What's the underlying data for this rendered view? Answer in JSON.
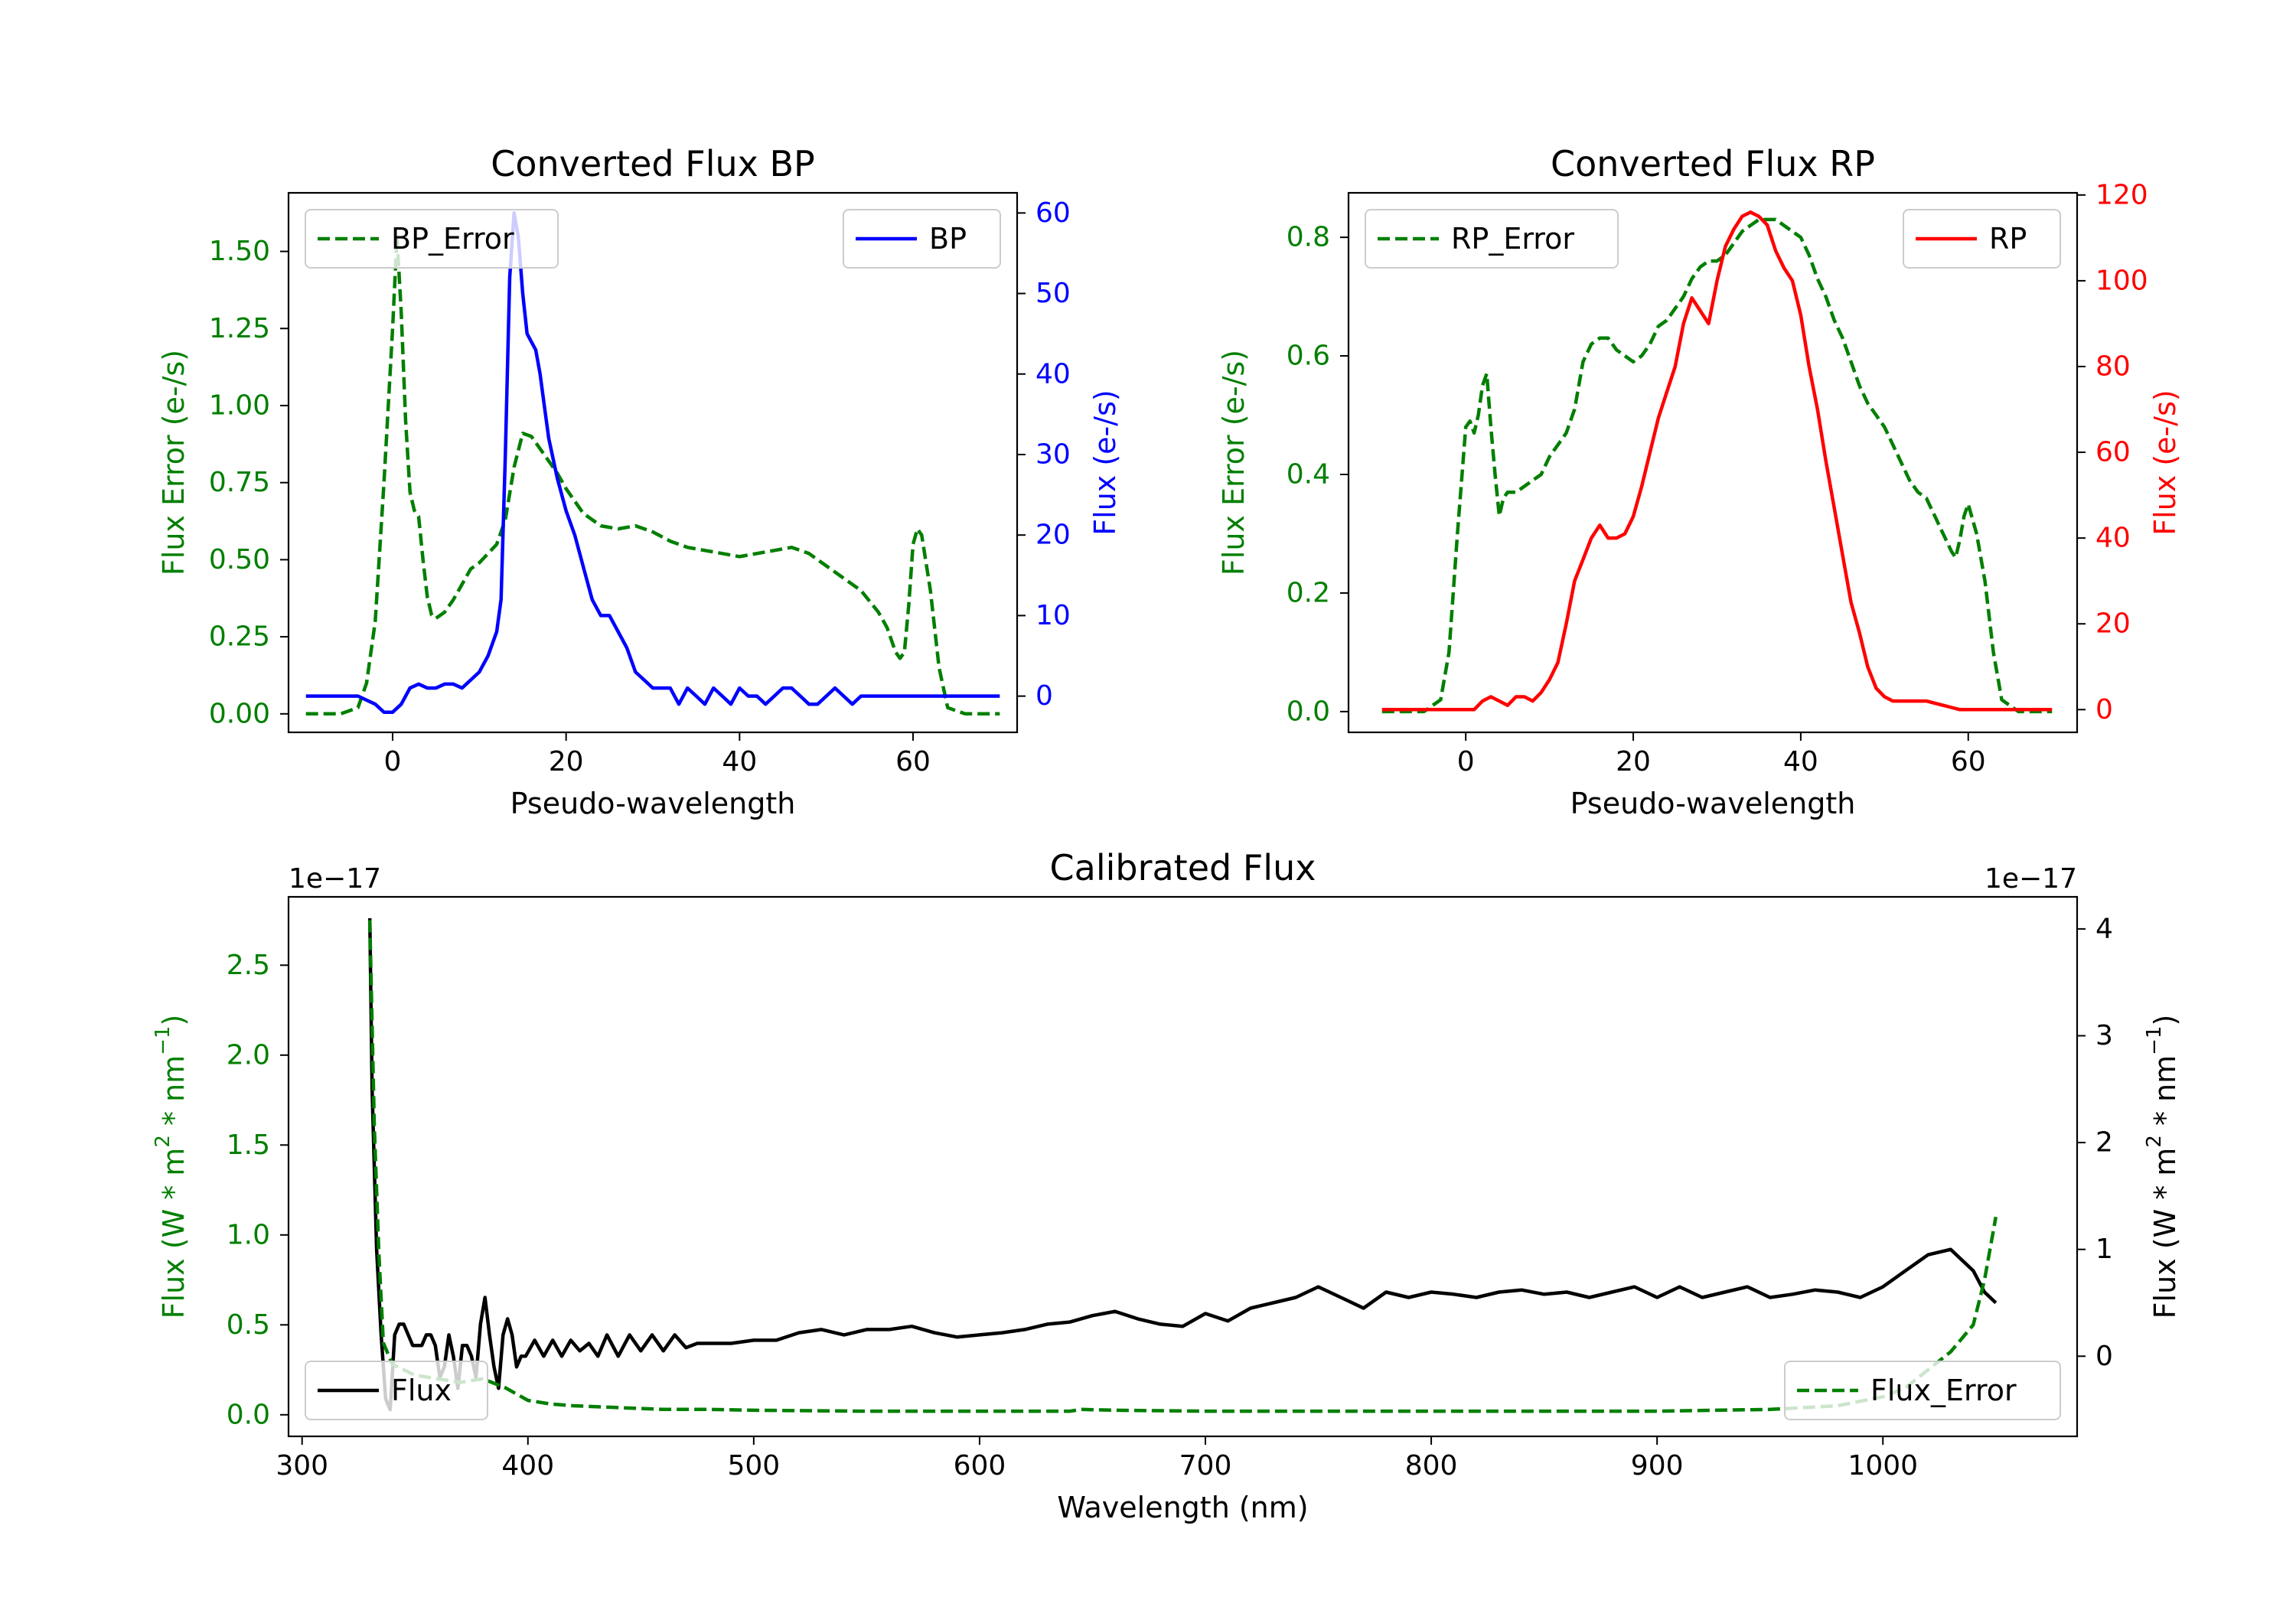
{
  "colors": {
    "bp_error": "#007f00",
    "bp": "#0000ff",
    "rp_error": "#007f00",
    "rp": "#ff0000",
    "cal_flux": "#000000",
    "cal_error": "#007f00"
  },
  "chart_data": [
    {
      "id": "bp",
      "type": "line",
      "title": "Converted Flux BP",
      "xlabel": "Pseudo-wavelength",
      "ylabel_left": "Flux Error (e-/s)",
      "ylabel_right": "Flux (e-/s)",
      "xlim": [
        -12,
        72
      ],
      "ylim_left": [
        -0.06,
        1.69
      ],
      "ylim_right": [
        -4.5,
        62.5
      ],
      "xticks": [
        "0",
        "20",
        "40",
        "60"
      ],
      "yticks_left": [
        "0.00",
        "0.25",
        "0.50",
        "0.75",
        "1.00",
        "1.25",
        "1.50"
      ],
      "yticks_right": [
        "0",
        "10",
        "20",
        "30",
        "40",
        "50",
        "60"
      ],
      "legend": {
        "error_label": "BP_Error",
        "flux_label": "BP"
      },
      "series": [
        {
          "name": "BP_Error",
          "axis": "left",
          "style": "dashed",
          "x": [
            -10,
            -6,
            -4,
            -3,
            -2,
            -1,
            0,
            0.5,
            1,
            1.5,
            2,
            2.5,
            3,
            3.5,
            4,
            4.5,
            5,
            6,
            7,
            8,
            9,
            10,
            11,
            12,
            13,
            14,
            15,
            16,
            17,
            18,
            19,
            20,
            21,
            22,
            24,
            26,
            28,
            30,
            32,
            34,
            36,
            38,
            40,
            42,
            44,
            46,
            48,
            50,
            52,
            54,
            56,
            57,
            58,
            58.5,
            59,
            59.5,
            60,
            60.5,
            61,
            62,
            63,
            64,
            66,
            70
          ],
          "values": [
            0,
            0,
            0.02,
            0.1,
            0.3,
            0.75,
            1.25,
            1.55,
            1.3,
            0.95,
            0.72,
            0.66,
            0.64,
            0.5,
            0.38,
            0.32,
            0.31,
            0.33,
            0.37,
            0.42,
            0.47,
            0.49,
            0.52,
            0.55,
            0.63,
            0.8,
            0.91,
            0.9,
            0.86,
            0.82,
            0.78,
            0.73,
            0.69,
            0.65,
            0.61,
            0.6,
            0.61,
            0.59,
            0.56,
            0.54,
            0.53,
            0.52,
            0.51,
            0.52,
            0.53,
            0.54,
            0.52,
            0.48,
            0.44,
            0.4,
            0.33,
            0.28,
            0.2,
            0.18,
            0.2,
            0.35,
            0.55,
            0.6,
            0.58,
            0.4,
            0.15,
            0.02,
            0,
            0
          ]
        },
        {
          "name": "BP",
          "axis": "right",
          "style": "solid",
          "x": [
            -10,
            -6,
            -4,
            -2,
            -1,
            0,
            1,
            2,
            3,
            4,
            5,
            6,
            7,
            8,
            9,
            10,
            11,
            12,
            12.5,
            13,
            13.5,
            14,
            14.5,
            15,
            15.5,
            16,
            16.5,
            17,
            17.5,
            18,
            19,
            20,
            21,
            22,
            23,
            24,
            25,
            26,
            27,
            28,
            29,
            30,
            31,
            32,
            33,
            34,
            35,
            36,
            37,
            38,
            39,
            40,
            41,
            42,
            43,
            44,
            45,
            46,
            47,
            48,
            49,
            50,
            51,
            52,
            53,
            54,
            55,
            56,
            57,
            58,
            60,
            62,
            64,
            66,
            70
          ],
          "values": [
            0,
            0,
            0,
            -1,
            -2,
            -2,
            -1,
            1,
            1.5,
            1,
            1,
            1.5,
            1.5,
            1,
            2,
            3,
            5,
            8,
            12,
            30,
            52,
            60,
            57,
            50,
            45,
            44,
            43,
            40,
            36,
            32,
            27,
            23,
            20,
            16,
            12,
            10,
            10,
            8,
            6,
            3,
            2,
            1,
            1,
            1,
            -1,
            1,
            0,
            -1,
            1,
            0,
            -1,
            1,
            0,
            0,
            -1,
            0,
            1,
            1,
            0,
            -1,
            -1,
            0,
            1,
            0,
            -1,
            0,
            0,
            0,
            0,
            0,
            0,
            0,
            0,
            0,
            0
          ]
        }
      ]
    },
    {
      "id": "rp",
      "type": "line",
      "title": "Converted Flux RP",
      "xlabel": "Pseudo-wavelength",
      "ylabel_left": "Flux Error (e-/s)",
      "ylabel_right": "Flux (e-/s)",
      "xlim": [
        -14,
        73
      ],
      "ylim_left": [
        -0.035,
        0.875
      ],
      "ylim_right": [
        -5.3,
        120.5
      ],
      "xticks": [
        "0",
        "20",
        "40",
        "60"
      ],
      "yticks_left": [
        "0.0",
        "0.2",
        "0.4",
        "0.6",
        "0.8"
      ],
      "yticks_right": [
        "0",
        "20",
        "40",
        "60",
        "80",
        "100",
        "120"
      ],
      "legend": {
        "error_label": "RP_Error",
        "flux_label": "RP"
      },
      "series": [
        {
          "name": "RP_Error",
          "axis": "left",
          "style": "dashed",
          "x": [
            -10,
            -5,
            -3,
            -2,
            -1,
            0,
            0.5,
            1,
            1.5,
            2,
            2.5,
            3,
            3.5,
            4,
            4.5,
            5,
            6,
            7,
            8,
            9,
            10,
            11,
            12,
            13,
            14,
            15,
            16,
            17,
            18,
            19,
            20,
            21,
            22,
            23,
            24,
            25,
            26,
            27,
            28,
            29,
            30,
            31,
            32,
            33,
            34,
            35,
            36,
            37,
            38,
            39,
            40,
            41,
            42,
            43,
            44,
            45,
            46,
            47,
            48,
            49,
            50,
            51,
            52,
            53,
            54,
            55,
            56,
            57,
            58,
            58.5,
            59,
            59.5,
            60,
            61,
            62,
            63,
            64,
            66,
            70
          ],
          "values": [
            0,
            0,
            0.02,
            0.1,
            0.3,
            0.48,
            0.49,
            0.47,
            0.5,
            0.55,
            0.57,
            0.48,
            0.4,
            0.33,
            0.36,
            0.37,
            0.37,
            0.38,
            0.39,
            0.4,
            0.43,
            0.45,
            0.47,
            0.51,
            0.59,
            0.62,
            0.63,
            0.63,
            0.61,
            0.6,
            0.59,
            0.6,
            0.62,
            0.65,
            0.66,
            0.68,
            0.7,
            0.73,
            0.75,
            0.76,
            0.76,
            0.77,
            0.79,
            0.81,
            0.82,
            0.83,
            0.83,
            0.83,
            0.82,
            0.81,
            0.8,
            0.77,
            0.73,
            0.7,
            0.66,
            0.63,
            0.59,
            0.55,
            0.52,
            0.5,
            0.48,
            0.45,
            0.42,
            0.39,
            0.37,
            0.36,
            0.33,
            0.3,
            0.27,
            0.26,
            0.29,
            0.33,
            0.35,
            0.3,
            0.22,
            0.1,
            0.02,
            0,
            0
          ]
        },
        {
          "name": "RP",
          "axis": "right",
          "style": "solid",
          "x": [
            -10,
            -5,
            0,
            1,
            2,
            3,
            4,
            5,
            6,
            7,
            8,
            9,
            10,
            11,
            12,
            13,
            14,
            15,
            16,
            17,
            18,
            19,
            20,
            21,
            22,
            23,
            24,
            25,
            26,
            27,
            28,
            29,
            30,
            31,
            32,
            33,
            34,
            35,
            36,
            37,
            38,
            39,
            40,
            41,
            42,
            43,
            44,
            45,
            46,
            47,
            48,
            49,
            50,
            51,
            52,
            53,
            54,
            55,
            56,
            57,
            58,
            59,
            60,
            61,
            62,
            64,
            66,
            70
          ],
          "values": [
            0,
            0,
            0,
            0,
            2,
            3,
            2,
            1,
            3,
            3,
            2,
            4,
            7,
            11,
            20,
            30,
            35,
            40,
            43,
            40,
            40,
            41,
            45,
            52,
            60,
            68,
            74,
            80,
            90,
            96,
            93,
            90,
            100,
            108,
            112,
            115,
            116,
            115,
            113,
            107,
            103,
            100,
            92,
            80,
            70,
            58,
            47,
            36,
            25,
            18,
            10,
            5,
            3,
            2,
            2,
            2,
            2,
            2,
            1.5,
            1,
            0.5,
            0,
            0,
            0,
            0,
            0,
            0,
            0
          ]
        }
      ]
    },
    {
      "id": "calibrated",
      "type": "line",
      "title": "Calibrated Flux",
      "xlabel": "Wavelength (nm)",
      "ylabel_left_prefix": "Flux (W * m",
      "ylabel_left_suffix": " * nm",
      "ylabel_close": ")",
      "ylabel_sup1": "2",
      "ylabel_sup2": "−1",
      "offset_left": "1e−17",
      "offset_right": "1e−17",
      "xlim": [
        294,
        1086
      ],
      "ylim_left": [
        -0.12,
        2.88
      ],
      "ylim_right": [
        -0.75,
        4.3
      ],
      "xticks": [
        "300",
        "400",
        "500",
        "600",
        "700",
        "800",
        "900",
        "1000"
      ],
      "yticks_left": [
        "0.0",
        "0.5",
        "1.0",
        "1.5",
        "2.0",
        "2.5"
      ],
      "yticks_right": [
        "0",
        "1",
        "2",
        "3",
        "4"
      ],
      "legend": {
        "error_label": "Flux_Error",
        "flux_label": "Flux"
      },
      "series": [
        {
          "name": "Flux",
          "axis": "right",
          "style": "solid",
          "x": [
            330,
            331,
            333,
            335,
            337,
            339,
            341,
            343,
            345,
            347,
            349,
            351,
            353,
            355,
            357,
            359,
            361,
            363,
            365,
            367,
            369,
            371,
            373,
            375,
            377,
            379,
            381,
            383,
            385,
            387,
            389,
            391,
            393,
            395,
            397,
            399,
            403,
            407,
            411,
            415,
            419,
            423,
            427,
            431,
            435,
            440,
            445,
            450,
            455,
            460,
            465,
            470,
            475,
            480,
            490,
            500,
            510,
            520,
            530,
            540,
            550,
            560,
            570,
            580,
            590,
            600,
            610,
            620,
            630,
            640,
            650,
            655,
            660,
            670,
            680,
            690,
            700,
            710,
            720,
            730,
            740,
            750,
            760,
            770,
            780,
            790,
            800,
            810,
            820,
            830,
            840,
            850,
            860,
            870,
            880,
            890,
            900,
            910,
            920,
            930,
            940,
            950,
            960,
            970,
            980,
            990,
            1000,
            1010,
            1020,
            1030,
            1040,
            1045,
            1050
          ],
          "values": [
            4.1,
            2.5,
            1.0,
            0.2,
            -0.4,
            -0.5,
            0.2,
            0.3,
            0.3,
            0.2,
            0.1,
            0.1,
            0.1,
            0.2,
            0.2,
            0.1,
            -0.2,
            -0.1,
            0.2,
            0.0,
            -0.3,
            0.1,
            0.1,
            0.0,
            -0.2,
            0.3,
            0.55,
            0.2,
            -0.1,
            -0.3,
            0.2,
            0.35,
            0.2,
            -0.1,
            0.0,
            0.0,
            0.15,
            0.0,
            0.15,
            0.0,
            0.15,
            0.05,
            0.12,
            0.0,
            0.2,
            0.0,
            0.2,
            0.05,
            0.2,
            0.05,
            0.2,
            0.08,
            0.12,
            0.12,
            0.12,
            0.15,
            0.15,
            0.22,
            0.25,
            0.2,
            0.25,
            0.25,
            0.28,
            0.22,
            0.18,
            0.2,
            0.22,
            0.25,
            0.3,
            0.32,
            0.38,
            0.4,
            0.42,
            0.35,
            0.3,
            0.28,
            0.4,
            0.33,
            0.45,
            0.5,
            0.55,
            0.65,
            0.55,
            0.45,
            0.6,
            0.55,
            0.6,
            0.58,
            0.55,
            0.6,
            0.62,
            0.58,
            0.6,
            0.55,
            0.6,
            0.65,
            0.55,
            0.65,
            0.55,
            0.6,
            0.65,
            0.55,
            0.58,
            0.62,
            0.6,
            0.55,
            0.65,
            0.8,
            0.95,
            1.0,
            0.8,
            0.6,
            0.5
          ]
        },
        {
          "name": "Flux_Error",
          "axis": "left",
          "style": "dashed",
          "x": [
            330,
            332,
            334,
            336,
            340,
            345,
            350,
            360,
            370,
            380,
            390,
            400,
            410,
            420,
            440,
            460,
            480,
            500,
            550,
            600,
            640,
            645,
            660,
            700,
            800,
            900,
            950,
            980,
            1000,
            1010,
            1020,
            1030,
            1040,
            1045,
            1050
          ],
          "values": [
            2.75,
            1.6,
            0.9,
            0.4,
            0.28,
            0.25,
            0.22,
            0.2,
            0.18,
            0.2,
            0.15,
            0.08,
            0.06,
            0.05,
            0.04,
            0.03,
            0.03,
            0.025,
            0.02,
            0.02,
            0.02,
            0.03,
            0.025,
            0.02,
            0.02,
            0.02,
            0.03,
            0.05,
            0.1,
            0.15,
            0.25,
            0.35,
            0.5,
            0.75,
            1.1
          ]
        }
      ]
    }
  ]
}
